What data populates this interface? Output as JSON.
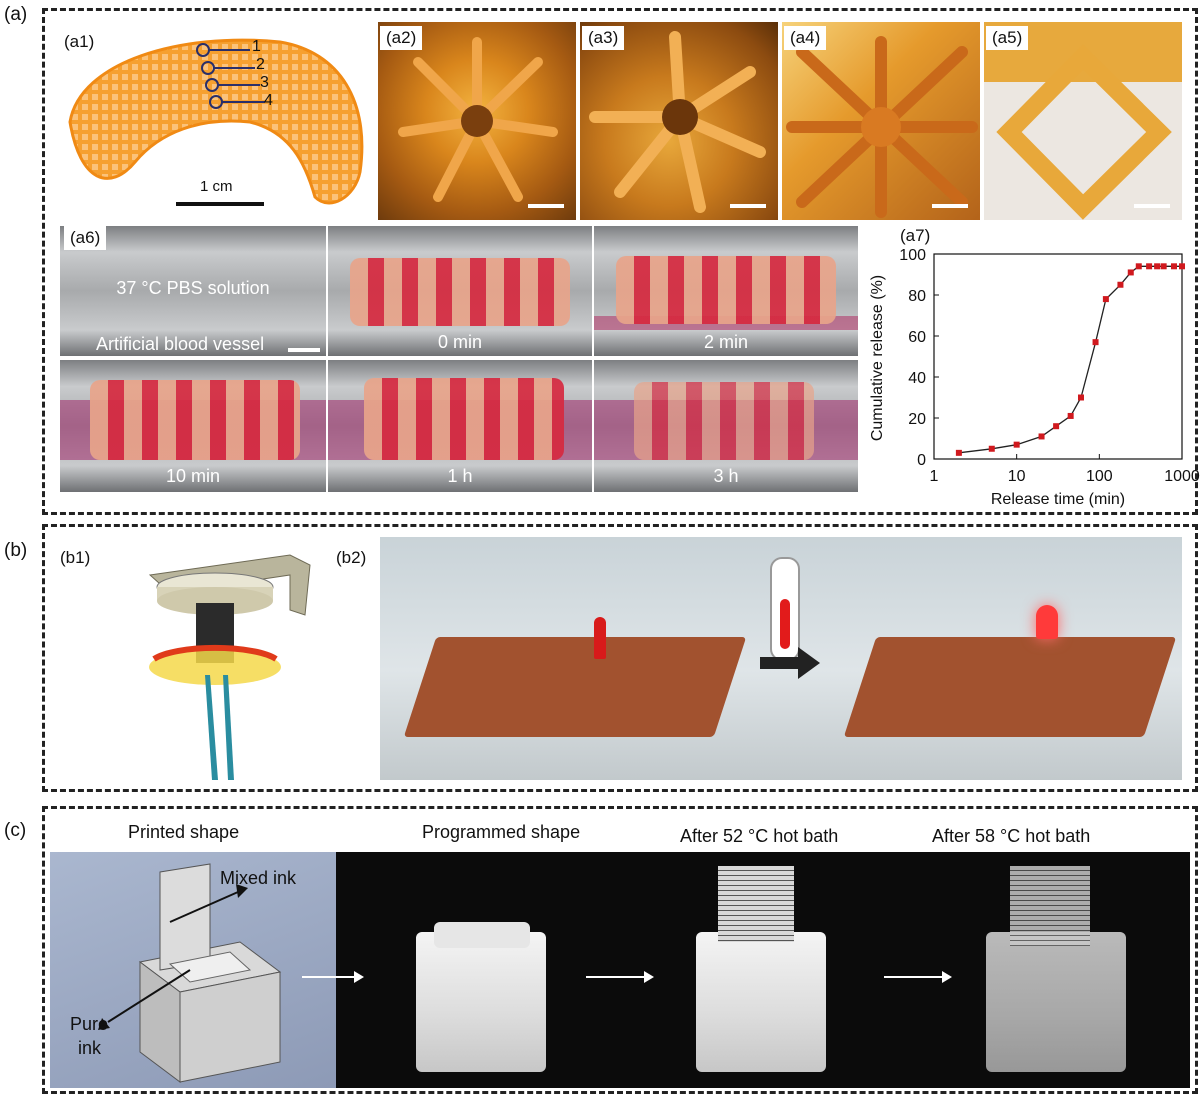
{
  "panels": {
    "a": {
      "label": "(a)"
    },
    "b": {
      "label": "(b)"
    },
    "c": {
      "label": "(c)"
    }
  },
  "a1": {
    "label": "(a1)",
    "markers": [
      "1",
      "2",
      "3",
      "4"
    ],
    "scale": "1 cm"
  },
  "a2": {
    "label": "(a2)"
  },
  "a3": {
    "label": "(a3)"
  },
  "a4": {
    "label": "(a4)"
  },
  "a5": {
    "label": "(a5)"
  },
  "a6": {
    "label": "(a6)",
    "solution_text": "37 °C PBS solution",
    "vessel_text": "Artificial blood vessel",
    "frames": [
      "0 min",
      "2 min",
      "10 min",
      "1 h",
      "3 h"
    ]
  },
  "a7": {
    "label": "(a7)"
  },
  "chart_data": {
    "type": "scatter",
    "title": "",
    "xlabel": "Release time (min)",
    "ylabel": "Cumulative release (%)",
    "x_scale": "log",
    "xlim": [
      1,
      1000
    ],
    "ylim": [
      0,
      100
    ],
    "x_ticks": [
      "1",
      "10",
      "100",
      "1000"
    ],
    "y_ticks": [
      "0",
      "20",
      "40",
      "60",
      "80",
      "100"
    ],
    "series": [
      {
        "color": "#d0191e",
        "x": [
          2,
          5,
          10,
          20,
          30,
          45,
          60,
          90,
          120,
          180,
          240,
          300,
          400,
          500,
          600,
          800,
          1000
        ],
        "y": [
          3,
          5,
          7,
          11,
          16,
          21,
          30,
          57,
          78,
          85,
          91,
          94,
          94,
          94,
          94,
          94,
          94
        ]
      }
    ]
  },
  "b1": {
    "label": "(b1)"
  },
  "b2": {
    "label": "(b2)"
  },
  "c_panel": {
    "titles": [
      "Printed shape",
      "Programmed shape",
      "After 52 °C hot bath",
      "After 58 °C hot bath"
    ],
    "mixed_ink": "Mixed ink",
    "pure_ink_1": "Pure",
    "pure_ink_2": "ink"
  }
}
